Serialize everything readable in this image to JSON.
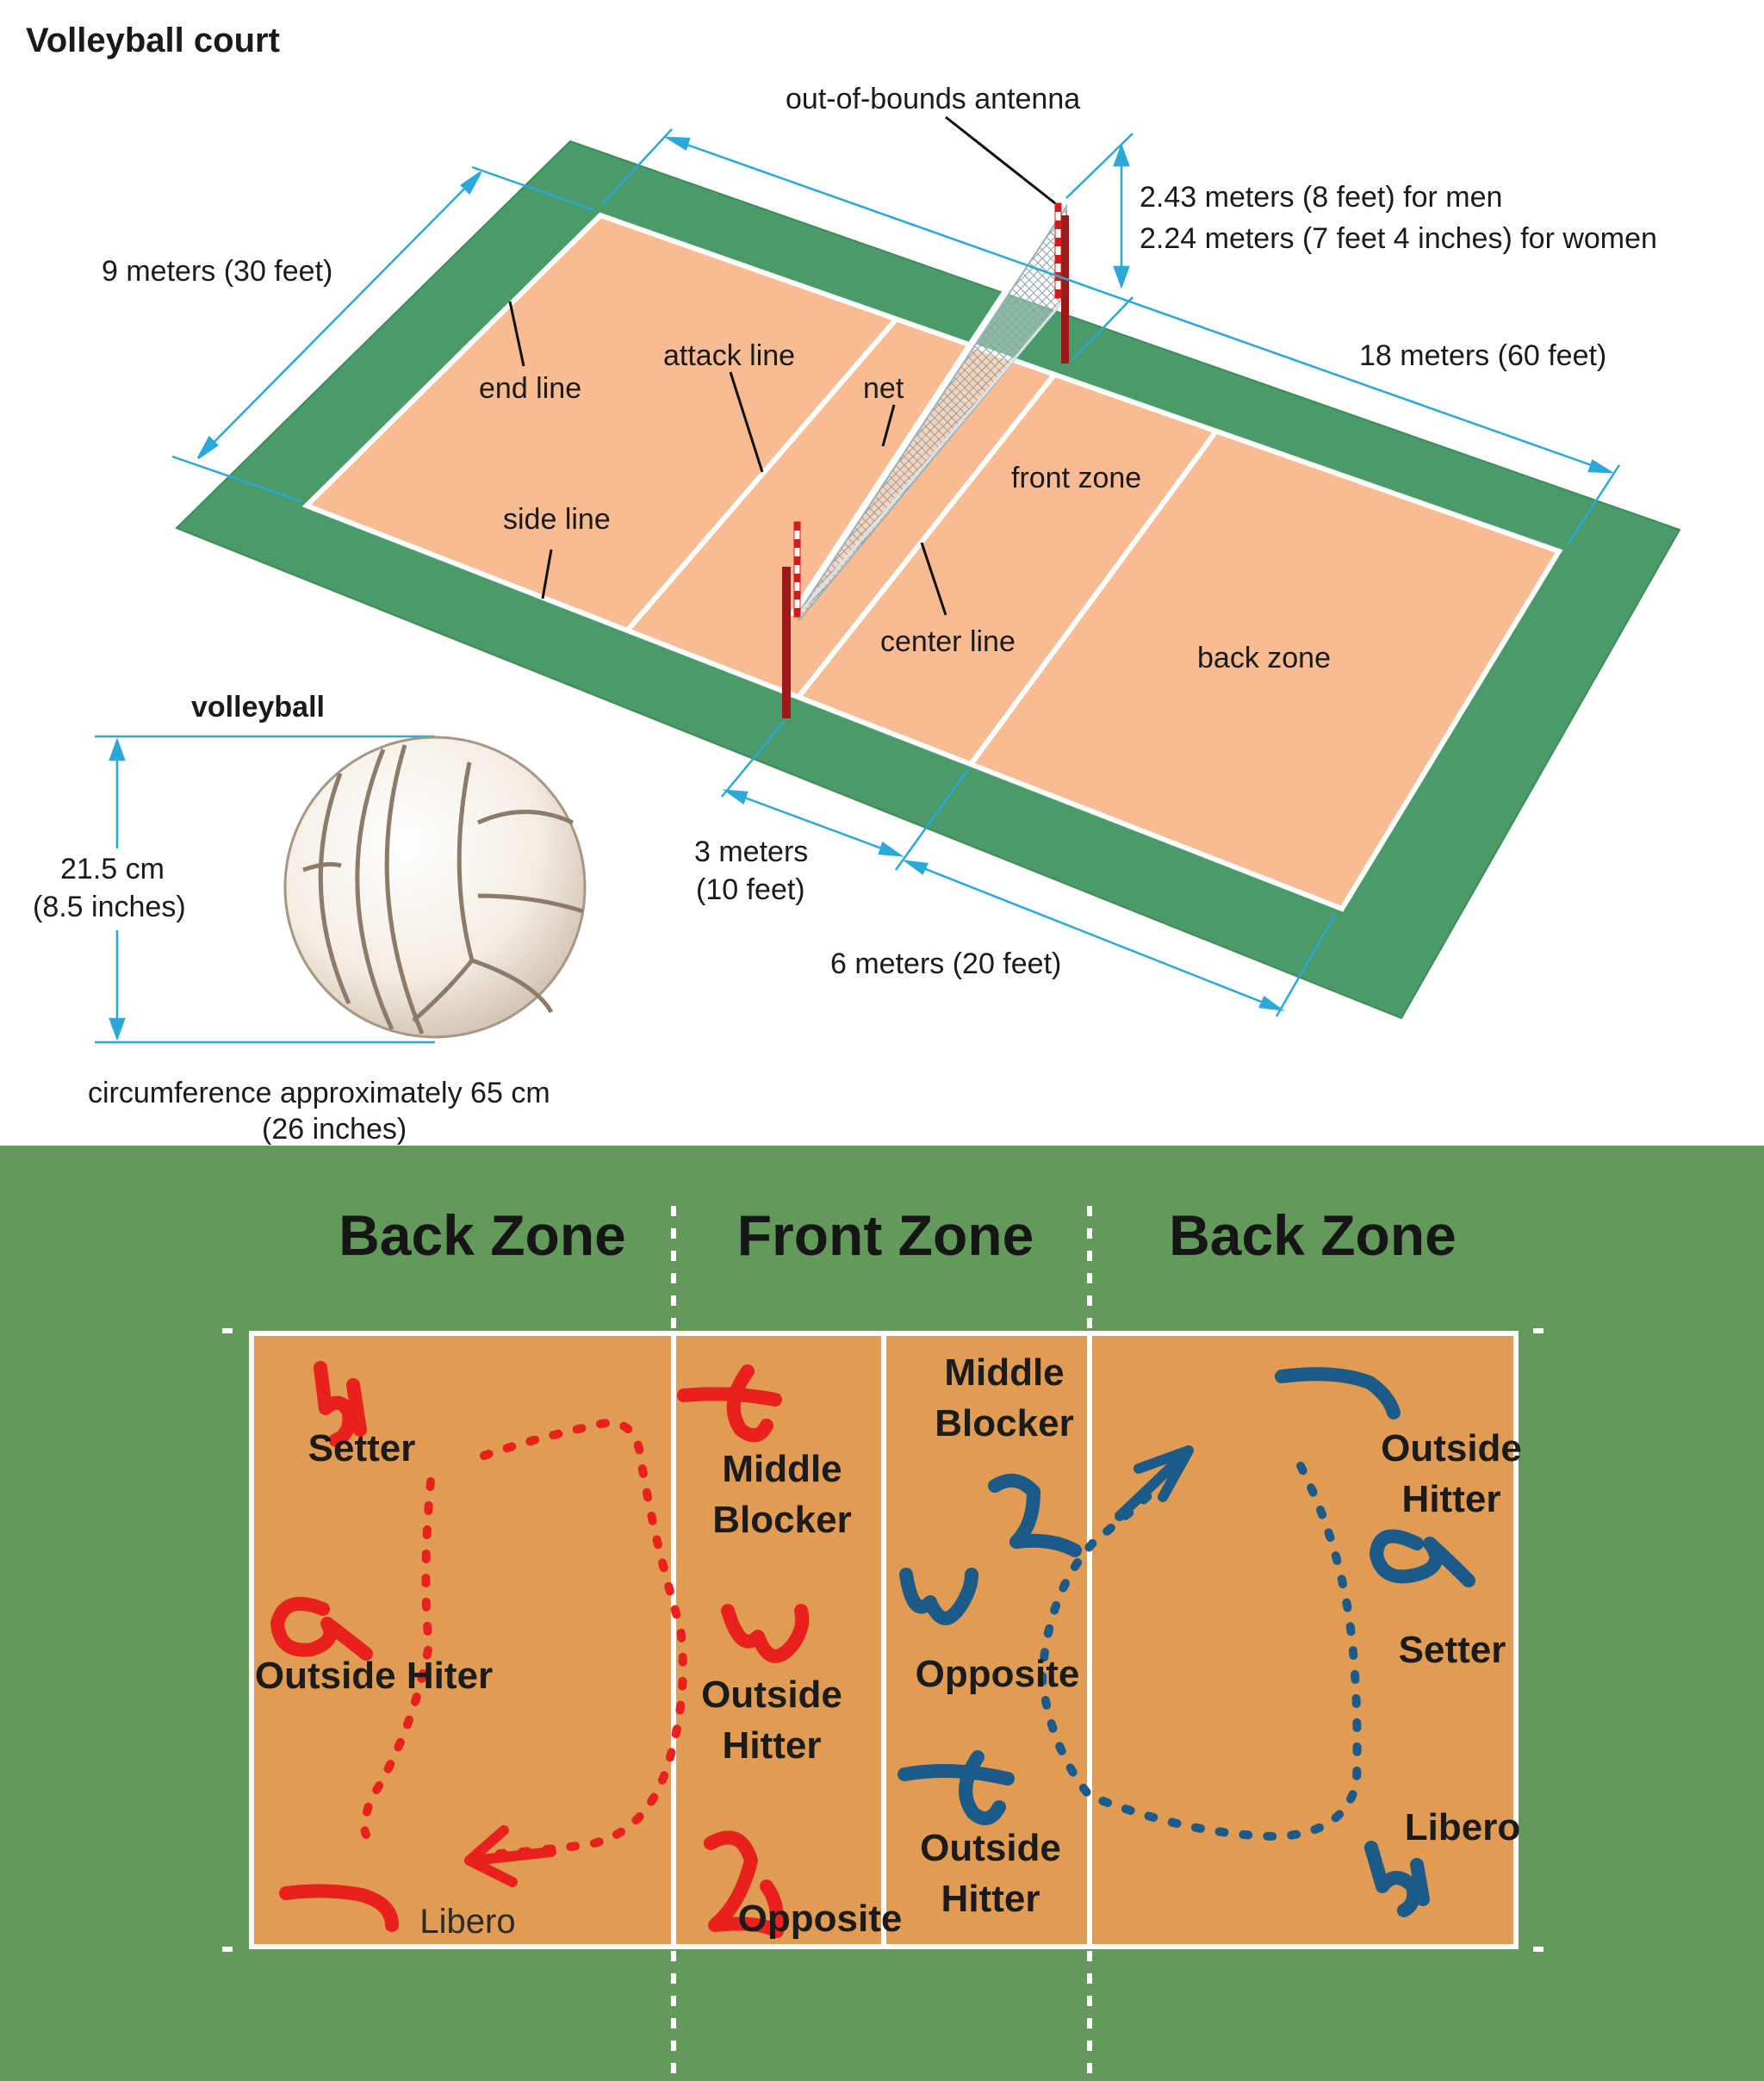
{
  "title": "Volleyball court",
  "court_labels": {
    "antenna": "out-of-bounds antenna",
    "net_height_men": "2.43 meters (8 feet) for men",
    "net_height_women": "2.24 meters (7 feet 4 inches) for women",
    "width": "9 meters (30 feet)",
    "length": "18 meters (60 feet)",
    "end_line": "end line",
    "attack_line": "attack line",
    "net": "net",
    "front_zone": "front zone",
    "side_line": "side line",
    "center_line": "center line",
    "back_zone": "back zone",
    "front_depth_1": "3 meters",
    "front_depth_2": "(10 feet)",
    "back_depth": "6 meters (20 feet)"
  },
  "ball": {
    "title": "volleyball",
    "diameter_1": "21.5 cm",
    "diameter_2": "(8.5 inches)",
    "circumference_1": "circumference approximately 65 cm",
    "circumference_2": "(26 inches)"
  },
  "rotation": {
    "zone_left": "Back Zone",
    "zone_middle": "Front Zone",
    "zone_right": "Back Zone",
    "red_team": [
      {
        "number": "5",
        "role": "Setter"
      },
      {
        "number": "6",
        "role": "Outside Hiter"
      },
      {
        "number": "7",
        "role": "Libero"
      },
      {
        "number": "4",
        "role_1": "Middle",
        "role_2": "Blocker"
      },
      {
        "number": "3",
        "role_1": "Outside",
        "role_2": "Hitter"
      },
      {
        "number": "2",
        "role": "Opposite"
      }
    ],
    "blue_team": [
      {
        "number": "2",
        "role_1": "Middle",
        "role_2": "Blocker"
      },
      {
        "number": "3",
        "role": "Opposite"
      },
      {
        "number": "4",
        "role_1": "Outside",
        "role_2": "Hitter"
      },
      {
        "number": "7",
        "role_1": "Outside",
        "role_2": "Hitter"
      },
      {
        "number": "6",
        "role": "Setter"
      },
      {
        "number": "5",
        "role": "Libero"
      }
    ]
  },
  "colors": {
    "court_orange": "#f8bb92",
    "surround_green": "#4a9a6a",
    "dimension_blue": "#2aa8d8",
    "field_green": "#639a5c",
    "court_tan": "#df9c52",
    "red_team": "#e8201e",
    "blue_team": "#1c5a8a"
  }
}
